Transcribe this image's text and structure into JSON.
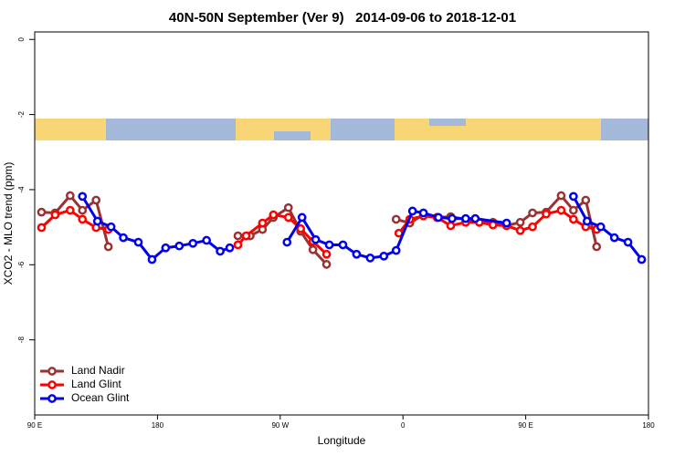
{
  "chart_data": {
    "type": "line",
    "title": "40N-50N September (Ver 9)   2014-09-06 to 2018-12-01",
    "x_label": "Longitude",
    "y_label": "XCO2 - MLO trend (ppm)",
    "xlim": [
      90,
      540
    ],
    "xticks": [
      {
        "value": 90,
        "label": "90 E"
      },
      {
        "value": 180,
        "label": "180"
      },
      {
        "value": 270,
        "label": "90 W"
      },
      {
        "value": 360,
        "label": "0"
      },
      {
        "value": 450,
        "label": "90 E"
      },
      {
        "value": 540,
        "label": "180"
      }
    ],
    "ylim": [
      -10,
      0.2
    ],
    "yticks": [
      0,
      -2,
      -4,
      -6,
      -8
    ],
    "legend": "bottom-left",
    "series": [
      {
        "name": "Land Nadir",
        "color": "#993333",
        "x": [
          95,
          105,
          116,
          125,
          135,
          144,
          null,
          239,
          248,
          257,
          265,
          276,
          285,
          294,
          304,
          null,
          355,
          365,
          375,
          385,
          395,
          406,
          416,
          426,
          436,
          446,
          455,
          465,
          476,
          485,
          494,
          502
        ],
        "values": [
          -4.6,
          -4.62,
          -4.16,
          -4.55,
          -4.28,
          -5.52,
          null,
          -5.23,
          -5.23,
          -5.06,
          -4.74,
          -4.48,
          -5.11,
          -5.6,
          -5.99,
          null,
          -4.79,
          -4.89,
          -4.67,
          -4.74,
          -4.72,
          -4.79,
          -4.87,
          -4.87,
          -4.96,
          -4.87,
          -4.62,
          -4.6,
          -4.16,
          -4.55,
          -4.28,
          -5.52
        ]
      },
      {
        "name": "Land Glint",
        "color": "#ff0000",
        "x": [
          95,
          105,
          116,
          125,
          135,
          144,
          null,
          239,
          245,
          257,
          265,
          276,
          285,
          294,
          304,
          null,
          357,
          365,
          375,
          385,
          395,
          406,
          416,
          426,
          436,
          446,
          455,
          465,
          476,
          485,
          494,
          502
        ],
        "values": [
          -5.01,
          -4.67,
          -4.55,
          -4.79,
          -5.01,
          -5.06,
          null,
          -5.47,
          -5.23,
          -4.89,
          -4.67,
          -4.74,
          -5.04,
          -5.38,
          -5.72,
          null,
          -5.16,
          -4.79,
          -4.7,
          -4.74,
          -4.96,
          -4.87,
          -4.87,
          -4.94,
          -4.96,
          -5.09,
          -4.99,
          -4.65,
          -4.55,
          -4.79,
          -4.99,
          -5.06
        ]
      },
      {
        "name": "Ocean Glint",
        "color": "#0000ee",
        "x": [
          125,
          136,
          146,
          155,
          166,
          176,
          186,
          196,
          206,
          216,
          226,
          233,
          null,
          275,
          286,
          296,
          306,
          316,
          326,
          336,
          346,
          355,
          367,
          375,
          386,
          396,
          406,
          413,
          436,
          null,
          485,
          495,
          505,
          515,
          525,
          535
        ],
        "values": [
          -4.18,
          -4.84,
          -4.99,
          -5.28,
          -5.4,
          -5.86,
          -5.55,
          -5.5,
          -5.43,
          -5.35,
          -5.64,
          -5.55,
          null,
          -5.4,
          -4.74,
          -5.33,
          -5.47,
          -5.47,
          -5.72,
          -5.82,
          -5.77,
          -5.62,
          -4.57,
          -4.62,
          -4.74,
          -4.77,
          -4.77,
          -4.77,
          -4.89,
          null,
          -4.18,
          -4.84,
          -4.99,
          -5.28,
          -5.4,
          -5.86
        ]
      }
    ]
  }
}
